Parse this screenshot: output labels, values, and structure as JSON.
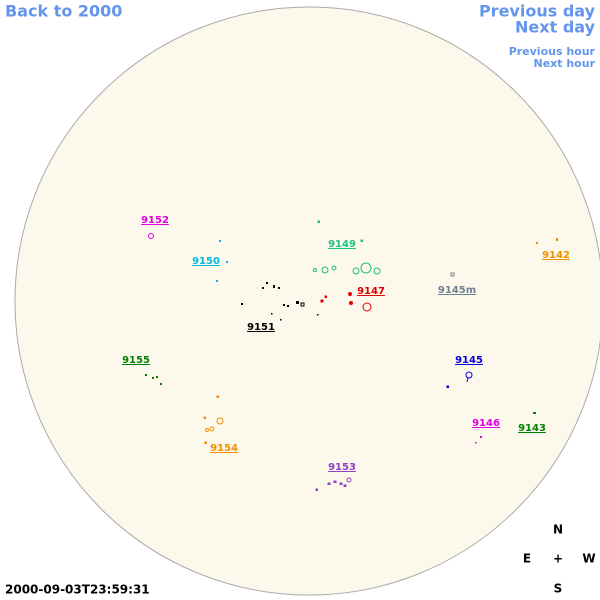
{
  "nav": {
    "back": "Back to 2000",
    "previous_day": "Previous day",
    "next_day": "Next day",
    "previous_hour": "Previous hour",
    "next_hour": "Next hour"
  },
  "regions": [
    {
      "label": "9152"
    },
    {
      "label": "9150"
    },
    {
      "label": "9149"
    },
    {
      "label": "9147"
    },
    {
      "label": "9145m"
    },
    {
      "label": "9142"
    },
    {
      "label": "9151"
    },
    {
      "label": "9155"
    },
    {
      "label": "9145"
    },
    {
      "label": "9146"
    },
    {
      "label": "9143"
    },
    {
      "label": "9154"
    },
    {
      "label": "9153"
    }
  ],
  "timestamp": "2000-09-03T23:59:31",
  "compass": {
    "north": "N",
    "east": "E",
    "center": "+",
    "west": "W",
    "south": "S"
  }
}
